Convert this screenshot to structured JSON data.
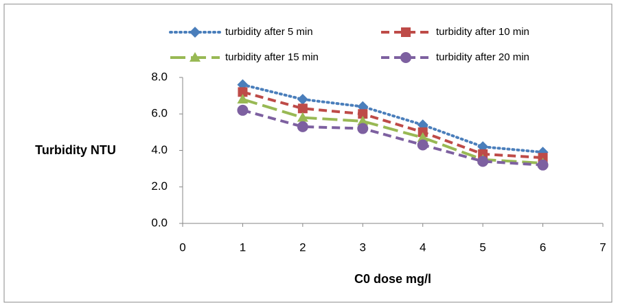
{
  "chart_data": {
    "type": "line",
    "x_label": "C0 dose mg/l",
    "y_label": "Turbidity NTU",
    "x": [
      1,
      2,
      3,
      4,
      5,
      6
    ],
    "xlim": [
      0,
      7
    ],
    "xticks": [
      0,
      1,
      2,
      3,
      4,
      5,
      6,
      7
    ],
    "ylim": [
      0,
      8
    ],
    "yticks": [
      {
        "value": 0,
        "label": "0.0"
      },
      {
        "value": 2,
        "label": "2.0"
      },
      {
        "value": 4,
        "label": "4.0"
      },
      {
        "value": 6,
        "label": "6.0"
      },
      {
        "value": 8,
        "label": "8.0"
      }
    ],
    "grid": false,
    "legend": "top",
    "series": [
      {
        "name": "turbidity after 5 min",
        "color": "#4a7ebb",
        "dash": "dotted",
        "marker": "diamond",
        "values": [
          7.6,
          6.8,
          6.4,
          5.4,
          4.2,
          3.9
        ]
      },
      {
        "name": "turbidity after 10 min",
        "color": "#be4b48",
        "dash": "dashed",
        "marker": "square",
        "values": [
          7.2,
          6.3,
          6.0,
          5.0,
          3.8,
          3.6
        ]
      },
      {
        "name": "turbidity after 15 min",
        "color": "#98b954",
        "dash": "longdash",
        "marker": "triangle",
        "values": [
          6.8,
          5.8,
          5.6,
          4.7,
          3.5,
          3.3
        ]
      },
      {
        "name": "turbidity after 20 min",
        "color": "#7d60a0",
        "dash": "dashed",
        "marker": "circle",
        "values": [
          6.2,
          5.3,
          5.2,
          4.3,
          3.4,
          3.2
        ]
      }
    ]
  }
}
